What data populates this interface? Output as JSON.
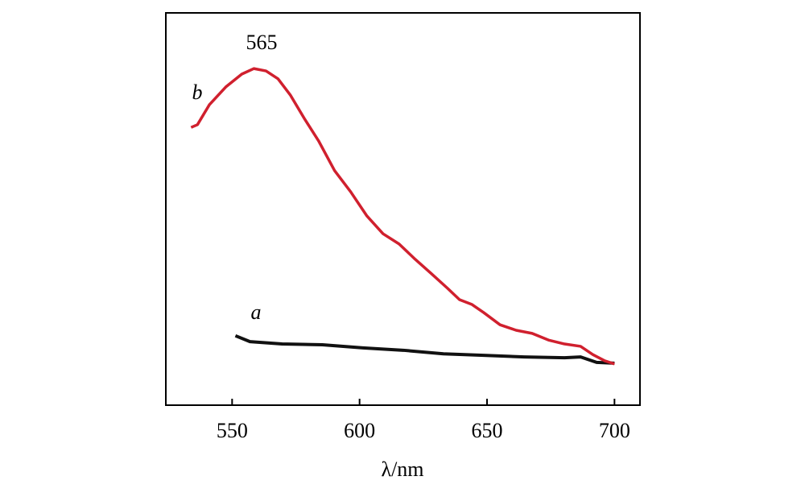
{
  "chart_data": {
    "type": "line",
    "x_label": "λ/nm",
    "xlim": [
      524,
      710
    ],
    "xticks": [
      550,
      600,
      650,
      700
    ],
    "ylim": [
      0,
      100
    ],
    "annotations": [
      "565"
    ],
    "series": [
      {
        "name": "a",
        "color": "#111111",
        "x": [
          551.3,
          557.0,
          569.6,
          585.4,
          601.3,
          617.1,
          632.9,
          648.7,
          664.6,
          680.4,
          686.7,
          693.0,
          700
        ],
        "values": [
          17.7,
          16.2,
          15.6,
          15.4,
          14.6,
          14.0,
          13.1,
          12.7,
          12.3,
          12.1,
          12.3,
          10.9,
          10.7
        ]
      },
      {
        "name": "b",
        "color": "#d0202e",
        "x": [
          533.9,
          536.4,
          541.1,
          547.5,
          553.8,
          558.5,
          563.3,
          568.0,
          572.8,
          578.5,
          583.9,
          590.2,
          596.5,
          602.8,
          609.2,
          615.5,
          621.8,
          628.2,
          634.5,
          639.2,
          644.0,
          648.7,
          655.1,
          661.4,
          667.7,
          674.1,
          680.4,
          686.7,
          691.5,
          696.2,
          700
        ],
        "values": [
          70.8,
          71.5,
          76.6,
          81.1,
          84.4,
          85.8,
          85.2,
          83.2,
          79.1,
          72.9,
          67.4,
          59.8,
          54.4,
          48.3,
          43.7,
          41.1,
          37.2,
          33.5,
          29.8,
          26.9,
          25.7,
          23.6,
          20.5,
          19.1,
          18.3,
          16.6,
          15.6,
          15.0,
          12.9,
          11.3,
          10.5
        ]
      }
    ]
  }
}
